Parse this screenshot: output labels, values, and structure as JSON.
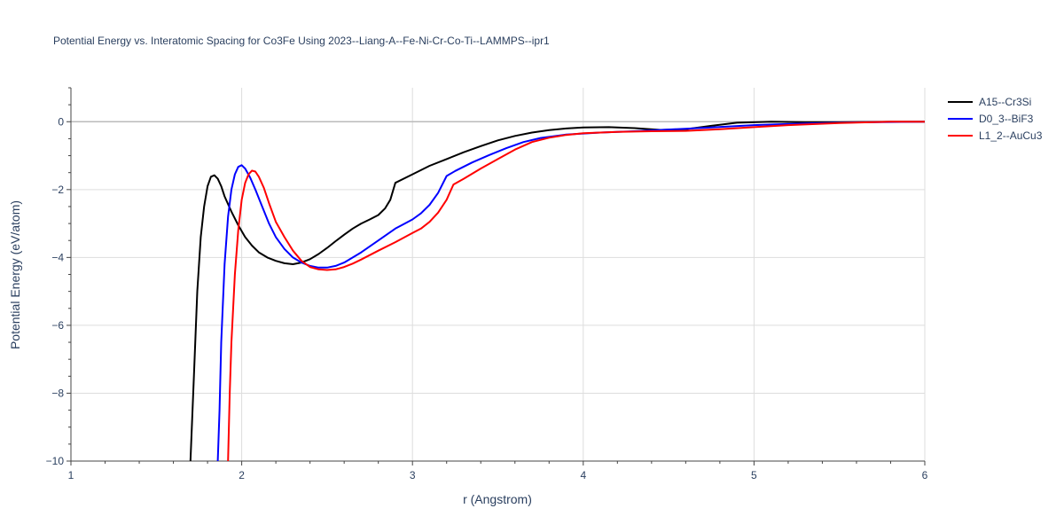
{
  "chart_data": {
    "type": "line",
    "title": "Potential Energy vs. Interatomic Spacing for Co3Fe Using 2023--Liang-A--Fe-Ni-Cr-Co-Ti--LAMMPS--ipr1",
    "xlabel": "r (Angstrom)",
    "ylabel": "Potential Energy (eV/atom)",
    "xlim": [
      1,
      6
    ],
    "ylim": [
      -10,
      1
    ],
    "xticks": [
      1,
      2,
      3,
      4,
      5,
      6
    ],
    "xtick_labels": [
      "1",
      "2",
      "3",
      "4",
      "5",
      "6"
    ],
    "yticks": [
      -10,
      -8,
      -6,
      -4,
      -2,
      0
    ],
    "ytick_labels": [
      "−10",
      "−8",
      "−6",
      "−4",
      "−2",
      "0"
    ],
    "grid": true,
    "legend_position": "top-right",
    "series": [
      {
        "name": "A15--Cr3Si",
        "color": "#000000",
        "x": [
          1.7,
          1.72,
          1.74,
          1.76,
          1.78,
          1.8,
          1.82,
          1.84,
          1.86,
          1.88,
          1.9,
          1.94,
          1.98,
          2.02,
          2.06,
          2.1,
          2.15,
          2.2,
          2.25,
          2.3,
          2.35,
          2.4,
          2.45,
          2.5,
          2.55,
          2.6,
          2.65,
          2.7,
          2.75,
          2.8,
          2.84,
          2.87,
          2.9,
          3.0,
          3.1,
          3.2,
          3.3,
          3.4,
          3.5,
          3.6,
          3.7,
          3.8,
          3.9,
          4.0,
          4.15,
          4.3,
          4.45,
          4.6,
          4.75,
          4.9,
          5.1,
          5.3,
          5.5,
          5.8,
          6.0
        ],
        "y": [
          -10.0,
          -7.5,
          -5.0,
          -3.4,
          -2.5,
          -1.9,
          -1.62,
          -1.58,
          -1.68,
          -1.9,
          -2.2,
          -2.65,
          -3.05,
          -3.4,
          -3.65,
          -3.85,
          -4.0,
          -4.1,
          -4.17,
          -4.2,
          -4.15,
          -4.05,
          -3.9,
          -3.72,
          -3.52,
          -3.33,
          -3.15,
          -3.0,
          -2.88,
          -2.75,
          -2.55,
          -2.3,
          -1.8,
          -1.55,
          -1.3,
          -1.1,
          -0.9,
          -0.72,
          -0.55,
          -0.42,
          -0.32,
          -0.25,
          -0.2,
          -0.17,
          -0.16,
          -0.19,
          -0.24,
          -0.22,
          -0.12,
          -0.03,
          0.0,
          -0.01,
          -0.01,
          0.0,
          0.0
        ]
      },
      {
        "name": "D0_3--BiF3",
        "color": "#0000ff",
        "x": [
          1.86,
          1.87,
          1.88,
          1.9,
          1.92,
          1.94,
          1.96,
          1.98,
          2.0,
          2.02,
          2.05,
          2.08,
          2.12,
          2.16,
          2.2,
          2.25,
          2.3,
          2.35,
          2.4,
          2.45,
          2.5,
          2.55,
          2.6,
          2.65,
          2.7,
          2.8,
          2.9,
          3.0,
          3.05,
          3.1,
          3.15,
          3.2,
          3.25,
          3.35,
          3.45,
          3.55,
          3.65,
          3.75,
          3.9,
          4.1,
          4.3,
          4.5,
          4.7,
          5.0,
          5.3,
          5.6,
          6.0
        ],
        "y": [
          -10.0,
          -8.5,
          -6.5,
          -4.2,
          -2.8,
          -2.0,
          -1.55,
          -1.33,
          -1.28,
          -1.38,
          -1.65,
          -2.0,
          -2.5,
          -3.0,
          -3.4,
          -3.75,
          -4.0,
          -4.15,
          -4.25,
          -4.3,
          -4.3,
          -4.25,
          -4.15,
          -4.0,
          -3.85,
          -3.5,
          -3.15,
          -2.88,
          -2.7,
          -2.45,
          -2.1,
          -1.6,
          -1.45,
          -1.2,
          -0.98,
          -0.78,
          -0.6,
          -0.48,
          -0.38,
          -0.32,
          -0.28,
          -0.23,
          -0.18,
          -0.1,
          -0.05,
          -0.02,
          0.0
        ]
      },
      {
        "name": "L1_2--AuCu3",
        "color": "#ff0000",
        "x": [
          1.92,
          1.93,
          1.94,
          1.96,
          1.98,
          2.0,
          2.02,
          2.04,
          2.06,
          2.08,
          2.1,
          2.13,
          2.16,
          2.2,
          2.25,
          2.3,
          2.35,
          2.4,
          2.45,
          2.5,
          2.55,
          2.6,
          2.65,
          2.7,
          2.8,
          2.9,
          3.0,
          3.05,
          3.1,
          3.15,
          3.2,
          3.24,
          3.3,
          3.4,
          3.5,
          3.6,
          3.7,
          3.8,
          3.9,
          4.0,
          4.2,
          4.4,
          4.6,
          4.8,
          5.0,
          5.2,
          5.5,
          5.8,
          6.0
        ],
        "y": [
          -10.0,
          -8.0,
          -6.5,
          -4.5,
          -3.2,
          -2.3,
          -1.8,
          -1.55,
          -1.44,
          -1.47,
          -1.62,
          -1.95,
          -2.4,
          -2.95,
          -3.4,
          -3.8,
          -4.1,
          -4.28,
          -4.35,
          -4.37,
          -4.35,
          -4.28,
          -4.18,
          -4.06,
          -3.8,
          -3.55,
          -3.28,
          -3.15,
          -2.95,
          -2.68,
          -2.3,
          -1.85,
          -1.68,
          -1.38,
          -1.1,
          -0.82,
          -0.6,
          -0.47,
          -0.39,
          -0.34,
          -0.3,
          -0.28,
          -0.27,
          -0.22,
          -0.16,
          -0.1,
          -0.04,
          0.0,
          0.0
        ]
      }
    ]
  }
}
